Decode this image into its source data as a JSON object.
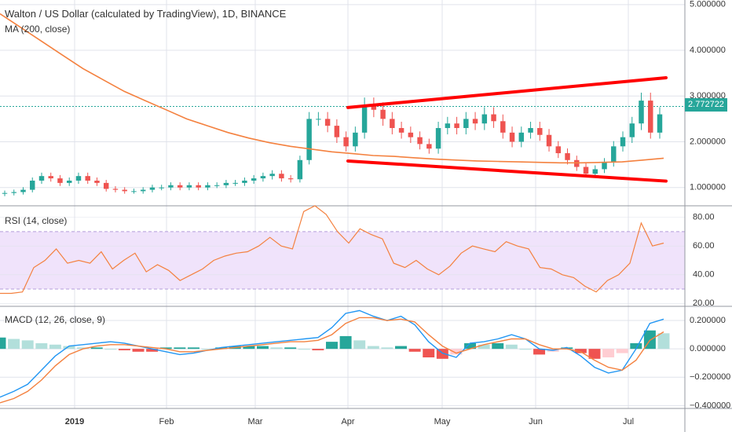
{
  "header": {
    "title": "Walton / US Dollar (calculated by TradingView), 1D, BINANCE",
    "ma_label": "MA (200, close)",
    "rsi_label": "RSI (14, close)",
    "macd_label": "MACD (12, 26, close, 9)"
  },
  "price_tag": "2.772722",
  "colors": {
    "up": "#26a69a",
    "down": "#ef5350",
    "ma": "#f4813f",
    "rsi": "#f4813f",
    "rsi_band": "#f0e3fb",
    "macd": "#2196f3",
    "signal": "#f4813f",
    "trendline": "#ff0000",
    "grid": "#e0e3eb",
    "price_line": "#26a69a"
  },
  "chart_data": [
    {
      "type": "candlestick",
      "title": "Walton / US Dollar (calculated by TradingView), 1D, BINANCE",
      "x_ticks": [
        "2019",
        "Feb",
        "Mar",
        "Apr",
        "May",
        "Jun",
        "Jul"
      ],
      "y_ticks": [
        "5.000000",
        "4.000000",
        "3.000000",
        "2.000000",
        "1.000000"
      ],
      "ylim": [
        0.6,
        5.1
      ],
      "current_price": 2.772722,
      "close_series": [
        0.88,
        0.9,
        0.95,
        1.15,
        1.25,
        1.2,
        1.1,
        1.15,
        1.25,
        1.15,
        1.1,
        0.97,
        0.95,
        0.92,
        0.92,
        0.95,
        1.0,
        1.0,
        1.05,
        1.0,
        1.05,
        1.0,
        1.05,
        1.05,
        1.1,
        1.1,
        1.15,
        1.2,
        1.25,
        1.3,
        1.2,
        1.18,
        1.6,
        2.5,
        2.5,
        2.35,
        2.1,
        1.9,
        2.2,
        2.8,
        2.7,
        2.5,
        2.3,
        2.2,
        2.1,
        1.95,
        1.85,
        2.3,
        2.4,
        2.3,
        2.5,
        2.4,
        2.6,
        2.45,
        2.2,
        2.0,
        2.2,
        2.3,
        2.15,
        1.9,
        1.75,
        1.6,
        1.45,
        1.3,
        1.4,
        1.55,
        1.9,
        2.1,
        2.4,
        2.9,
        2.2,
        2.6
      ],
      "ma": {
        "name": "MA (200, close)",
        "values": [
          4.8,
          4.5,
          4.2,
          3.9,
          3.6,
          3.35,
          3.1,
          2.9,
          2.7,
          2.5,
          2.35,
          2.2,
          2.08,
          1.98,
          1.9,
          1.84,
          1.78,
          1.74,
          1.7,
          1.68,
          1.65,
          1.62,
          1.6,
          1.58,
          1.57,
          1.56,
          1.55,
          1.54,
          1.54,
          1.55,
          1.56,
          1.6,
          1.64
        ]
      },
      "trendlines": [
        {
          "from": [
            "Apr",
            2.75
          ],
          "to": [
            "Jul",
            3.4
          ]
        },
        {
          "from": [
            "Apr",
            1.58
          ],
          "to": [
            "Jul",
            1.14
          ]
        }
      ]
    },
    {
      "type": "line",
      "title": "RSI (14, close)",
      "y_ticks": [
        "80.00",
        "60.00",
        "40.00",
        "20.00"
      ],
      "ylim": [
        18,
        88
      ],
      "band": [
        30,
        70
      ],
      "values": [
        27,
        27,
        28,
        45,
        50,
        58,
        48,
        50,
        48,
        56,
        44,
        50,
        55,
        42,
        47,
        43,
        36,
        40,
        44,
        50,
        53,
        55,
        56,
        60,
        66,
        60,
        58,
        84,
        88,
        82,
        70,
        62,
        72,
        68,
        65,
        48,
        45,
        50,
        44,
        40,
        46,
        55,
        60,
        58,
        56,
        63,
        60,
        58,
        45,
        44,
        40,
        38,
        32,
        28,
        36,
        40,
        48,
        76,
        60,
        62
      ]
    },
    {
      "type": "bar+line",
      "title": "MACD (12, 26, close, 9)",
      "y_ticks": [
        "0.200000",
        "0.000000",
        "−0.200000",
        "−0.400000"
      ],
      "ylim": [
        -0.42,
        0.3
      ],
      "macd": [
        -0.34,
        -0.3,
        -0.25,
        -0.15,
        -0.05,
        0.02,
        0.03,
        0.04,
        0.05,
        0.04,
        0.02,
        0.0,
        -0.02,
        -0.04,
        -0.03,
        -0.01,
        0.01,
        0.02,
        0.03,
        0.04,
        0.05,
        0.06,
        0.07,
        0.08,
        0.15,
        0.25,
        0.27,
        0.23,
        0.2,
        0.23,
        0.17,
        0.05,
        -0.03,
        -0.06,
        0.04,
        0.05,
        0.07,
        0.1,
        0.07,
        0.0,
        -0.01,
        0.01,
        -0.05,
        -0.13,
        -0.17,
        -0.15,
        0.0,
        0.18,
        0.21
      ],
      "signal": [
        -0.38,
        -0.35,
        -0.3,
        -0.22,
        -0.12,
        -0.04,
        0.0,
        0.02,
        0.03,
        0.03,
        0.02,
        0.01,
        0.0,
        -0.02,
        -0.02,
        -0.01,
        0.0,
        0.01,
        0.02,
        0.03,
        0.04,
        0.05,
        0.05,
        0.06,
        0.1,
        0.18,
        0.22,
        0.22,
        0.2,
        0.21,
        0.19,
        0.1,
        0.02,
        -0.03,
        0.0,
        0.03,
        0.05,
        0.07,
        0.07,
        0.03,
        0.0,
        0.0,
        -0.02,
        -0.08,
        -0.13,
        -0.15,
        -0.08,
        0.06,
        0.12
      ],
      "histogram": [
        0.08,
        0.07,
        0.06,
        0.04,
        0.03,
        0.02,
        0.01,
        0.01,
        0.0,
        -0.01,
        -0.02,
        -0.02,
        0.01,
        0.01,
        0.01,
        0.0,
        0.01,
        0.02,
        0.02,
        0.02,
        0.01,
        0.01,
        0.0,
        -0.01,
        0.05,
        0.09,
        0.06,
        0.02,
        0.01,
        0.02,
        -0.02,
        -0.06,
        -0.07,
        -0.04,
        0.04,
        0.03,
        0.04,
        0.03,
        0.0,
        -0.04,
        -0.02,
        0.01,
        -0.03,
        -0.07,
        -0.06,
        -0.03,
        0.04,
        0.13,
        0.11
      ]
    }
  ]
}
